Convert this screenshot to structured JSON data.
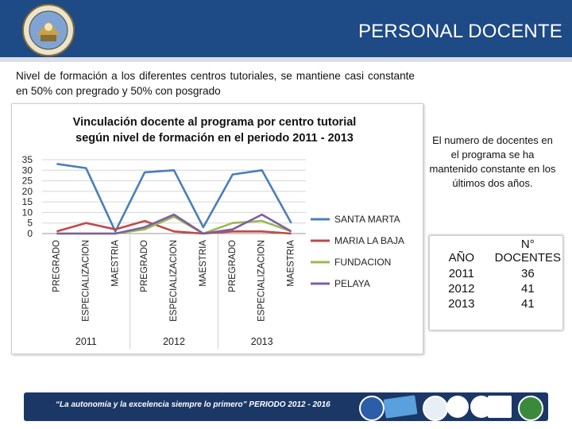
{
  "header": {
    "title": "PERSONAL DOCENTE"
  },
  "intro": "Nivel de formación a los diferentes centros tutoriales, se mantiene casi constante en 50% con pregrado y 50% con posgrado",
  "chart_data": {
    "type": "line",
    "title": "Vinculación docente al programa por centro tutorial según nivel de formación en el periodo 2011 - 2013",
    "title_lines": [
      "Vinculación docente al programa por centro tutorial",
      "según nivel de formación en el periodo 2011 - 2013"
    ],
    "categories": [
      "PREGRADO",
      "ESPECIALIZACION",
      "MAESTRIA",
      "PREGRADO",
      "ESPECIALIZACION",
      "MAESTRIA",
      "PREGRADO",
      "ESPECIALIZACION",
      "MAESTRIA"
    ],
    "groups": [
      "2011",
      "2012",
      "2013"
    ],
    "y_ticks": [
      0,
      5,
      10,
      15,
      20,
      25,
      30,
      35
    ],
    "ylim": [
      0,
      35
    ],
    "grid": true,
    "legend": "right",
    "series": [
      {
        "name": "SANTA MARTA",
        "color": "#4a7ebb",
        "values": [
          33,
          31,
          1,
          29,
          30,
          3,
          28,
          30,
          5
        ]
      },
      {
        "name": "MARIA LA BAJA",
        "color": "#be4b48",
        "values": [
          1,
          5,
          2,
          6,
          1,
          0,
          1,
          1,
          0
        ]
      },
      {
        "name": "FUNDACION",
        "color": "#98b954",
        "values": [
          0,
          0,
          0,
          2,
          8,
          0,
          5,
          6,
          1
        ]
      },
      {
        "name": "PELAYA",
        "color": "#7d5fa0",
        "values": [
          0,
          0,
          0,
          3,
          9,
          0,
          2,
          9,
          1
        ]
      }
    ]
  },
  "note": "El numero de docentes en el programa se ha mantenido constante en los últimos dos años.",
  "table": {
    "headers": [
      "AÑO",
      "N° DOCENTES"
    ],
    "rows": [
      {
        "year": "2011",
        "count": "36"
      },
      {
        "year": "2012",
        "count": "41"
      },
      {
        "year": "2013",
        "count": "41"
      }
    ]
  },
  "footer": {
    "slogan": "“La autonomía y la excelencia siempre lo primero” PERIODO 2012 - 2016"
  },
  "colors": {
    "header_bg": "#1e4a86",
    "footer_band": "#1b3766"
  }
}
